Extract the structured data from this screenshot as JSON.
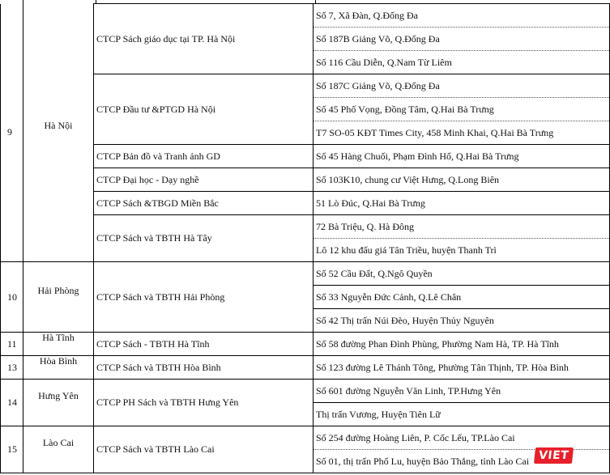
{
  "groups": [
    {
      "no": "9",
      "province": "Hà Nội",
      "continued": true,
      "companies": [
        {
          "name": "CTCP Sách giáo dục tại TP. Hà Nội",
          "dotted": true,
          "addresses": [
            "Số 7, Xã Đàn, Q.Đống Đa",
            "Số 187B Giảng Võ, Q.Đống Đa",
            "Số 116 Cầu Diễn, Q.Nam Từ Liêm"
          ]
        },
        {
          "name": "CTCP Đầu tư &PTGD Hà Nội",
          "dotted": true,
          "addresses": [
            "Số 187C Giảng Võ, Q.Đống Đa",
            "Số 45 Phố Vọng, Đồng Tâm, Q.Hai Bà Trưng",
            "T7 SO-05 KĐT Times City, 458 Minh Khai, Q.Hai Bà Trưng"
          ]
        },
        {
          "name": "CTCP Bản đồ và Tranh ảnh GD",
          "addresses": [
            "Số 45 Hàng Chuối, Phạm Đình Hổ, Q.Hai Bà Trưng"
          ]
        },
        {
          "name": "CTCP Đại học - Dạy nghề",
          "addresses": [
            "Số 103K10, chung cư Việt Hưng, Q.Long Biên"
          ]
        },
        {
          "name": "CTCP Sách &TBGD Miền Bắc",
          "addresses": [
            "51 Lò Đúc, Q.Hai Bà Trưng"
          ]
        },
        {
          "name": "CTCP Sách và TBTH Hà Tây",
          "dotted": true,
          "addresses": [
            "72 Bà Triệu, Q. Hà Đông",
            "Lô 12 khu đấu giá Tân Triều, huyện Thanh Trì"
          ]
        }
      ]
    },
    {
      "no": "10",
      "province": "Hải Phòng",
      "companies": [
        {
          "name": "CTCP Sách và TBTH Hải Phòng",
          "addresses": [
            "Số 52 Cầu Đất, Q.Ngô Quyền",
            "Số 33 Nguyễn Đức Cảnh, Q.Lê Chân",
            "Số 42 Thị trấn Núi Đèo, Huyện Thủy Nguyên"
          ]
        }
      ]
    },
    {
      "no": "11",
      "province": "Hà Tĩnh",
      "companies": [
        {
          "name": "CTCP Sách - TBTH Hà Tĩnh",
          "addresses": [
            "Số 58 đường Phan Đình Phùng, Phường Nam Hà, TP. Hà Tĩnh"
          ]
        }
      ]
    },
    {
      "no": "13",
      "province": "Hòa Bình",
      "companies": [
        {
          "name": "CTCP Sách và TBTH Hòa Bình",
          "addresses": [
            "Số 123 đường Lê Thánh Tông, Phường Tân Thịnh, TP. Hòa Bình"
          ]
        }
      ]
    },
    {
      "no": "14",
      "province": "Hưng Yên",
      "companies": [
        {
          "name": "CTCP PH Sách và TBTH Hưng Yên",
          "addresses": [
            "Số 601 đường Nguyễn Văn Linh, TP.Hưng Yên",
            "Thị trấn Vương, Huyện Tiên Lữ"
          ]
        }
      ]
    },
    {
      "no": "15",
      "province": "Lào Cai",
      "companies": [
        {
          "name": "CTCP Sách và TBTH Lào Cai",
          "dotted": true,
          "addresses": [
            "Số 254 đường Hoàng Liên, P. Cốc Lếu, TP.Lào Cai",
            "Số 01, thị trấn Phố Lu, huyện Bảo Thắng, tỉnh Lào Cai"
          ]
        }
      ]
    }
  ],
  "watermark": {
    "text": "VIET",
    "color": "#e8202a"
  }
}
